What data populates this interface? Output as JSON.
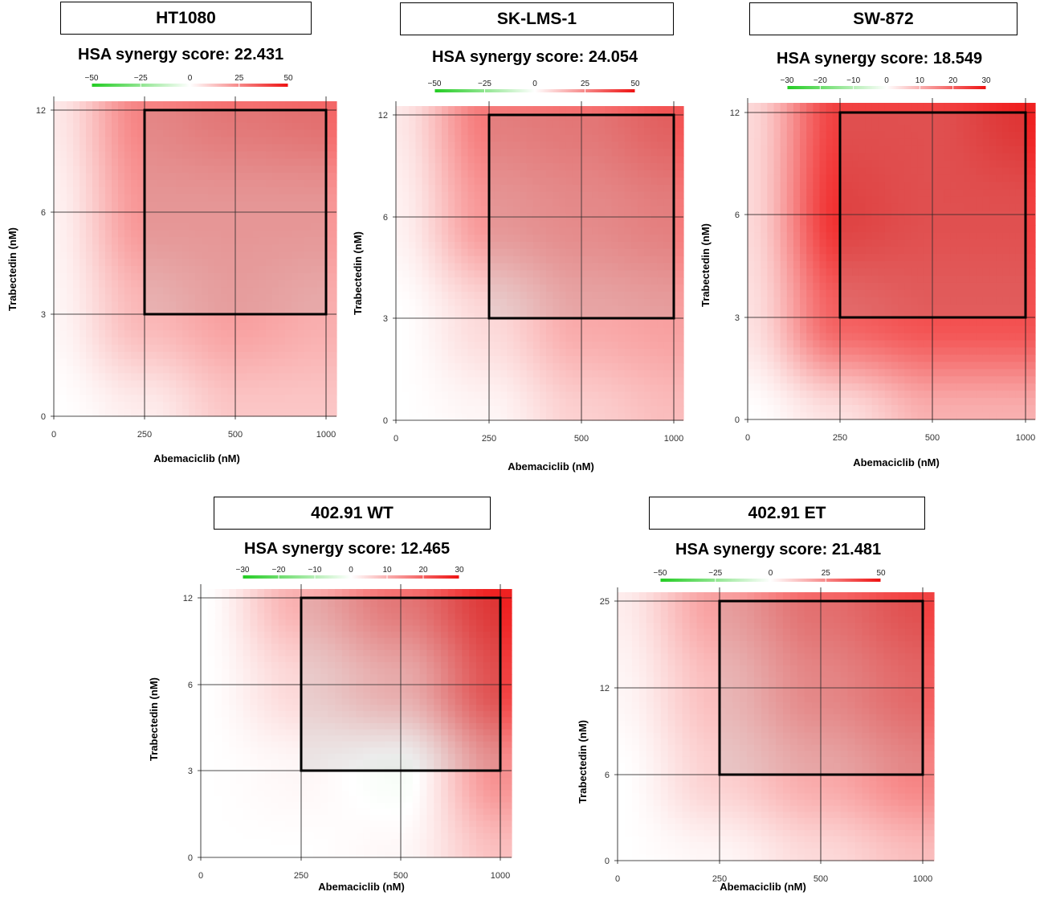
{
  "colors": {
    "negative": "#22cc22",
    "neutral": "#ffffff",
    "positive": "#ee1111",
    "box": "#000000"
  },
  "chart_data": [
    {
      "type": "heatmap",
      "title": "HT1080",
      "subtitle": "HSA synergy score: 22.431",
      "xlabel": "Abemaciclib (nM)",
      "ylabel": "Trabectedin (nM)",
      "x_ticks": [
        "0",
        "250",
        "500",
        "1000"
      ],
      "y_ticks": [
        "0",
        "3",
        "6",
        "12"
      ],
      "colorbar_ticks": [
        "−50",
        "−25",
        "0",
        "25",
        "50"
      ],
      "colorbar_range": [
        -50,
        50
      ],
      "highlight_region": {
        "x": [
          "250",
          "1000"
        ],
        "y": [
          "3",
          "12"
        ]
      },
      "grid": [
        [
          0,
          4,
          12,
          12
        ],
        [
          2,
          15,
          20,
          17
        ],
        [
          3,
          22,
          22,
          22
        ],
        [
          5,
          26,
          30,
          32
        ]
      ]
    },
    {
      "type": "heatmap",
      "title": "SK-LMS-1",
      "subtitle": "HSA synergy score: 24.054",
      "xlabel": "Abemaciclib (nM)",
      "ylabel": "Trabectedin (nM)",
      "x_ticks": [
        "0",
        "250",
        "500",
        "1000"
      ],
      "y_ticks": [
        "0",
        "3",
        "6",
        "12"
      ],
      "colorbar_ticks": [
        "−50",
        "−25",
        "0",
        "25",
        "50"
      ],
      "colorbar_range": [
        -50,
        50
      ],
      "highlight_region": {
        "x": [
          "250",
          "1000"
        ],
        "y": [
          "3",
          "12"
        ]
      },
      "grid": [
        [
          0,
          2,
          10,
          14
        ],
        [
          0,
          8,
          18,
          20
        ],
        [
          3,
          22,
          25,
          28
        ],
        [
          5,
          28,
          30,
          36
        ]
      ]
    },
    {
      "type": "heatmap",
      "title": "SW-872",
      "subtitle": "HSA synergy score: 18.549",
      "xlabel": "Abemaciclib (nM)",
      "ylabel": "Trabectedin (nM)",
      "x_ticks": [
        "0",
        "250",
        "500",
        "1000"
      ],
      "y_ticks": [
        "0",
        "3",
        "6",
        "12"
      ],
      "colorbar_ticks": [
        "−30",
        "−20",
        "−10",
        "0",
        "10",
        "20",
        "30"
      ],
      "colorbar_range": [
        -30,
        30
      ],
      "highlight_region": {
        "x": [
          "250",
          "1000"
        ],
        "y": [
          "3",
          "12"
        ]
      },
      "grid": [
        [
          0,
          4,
          10,
          10
        ],
        [
          4,
          20,
          22,
          22
        ],
        [
          5,
          26,
          24,
          24
        ],
        [
          5,
          24,
          24,
          28
        ]
      ]
    },
    {
      "type": "heatmap",
      "title": "402.91 WT",
      "subtitle": "HSA synergy score: 12.465",
      "xlabel": "Abemaciclib (nM)",
      "ylabel": "Trabectedin (nM)",
      "x_ticks": [
        "0",
        "250",
        "500",
        "1000"
      ],
      "y_ticks": [
        "0",
        "3",
        "6",
        "12"
      ],
      "colorbar_ticks": [
        "−30",
        "−20",
        "−10",
        "0",
        "10",
        "20",
        "30"
      ],
      "colorbar_range": [
        -30,
        30
      ],
      "highlight_region": {
        "x": [
          "250",
          "1000"
        ],
        "y": [
          "3",
          "12"
        ]
      },
      "grid": [
        [
          0,
          0,
          1,
          8
        ],
        [
          0,
          1,
          -1,
          14
        ],
        [
          0,
          5,
          10,
          24
        ],
        [
          0,
          10,
          18,
          28
        ]
      ]
    },
    {
      "type": "heatmap",
      "title": "402.91 ET",
      "subtitle": "HSA synergy score: 21.481",
      "xlabel": "Abemaciclib (nM)",
      "ylabel": "Trabectedin (nM)",
      "x_ticks": [
        "0",
        "250",
        "500",
        "1000"
      ],
      "y_ticks": [
        "0",
        "6",
        "12",
        "25"
      ],
      "colorbar_ticks": [
        "−50",
        "−25",
        "0",
        "25",
        "50"
      ],
      "colorbar_range": [
        -50,
        50
      ],
      "highlight_region": {
        "x": [
          "250",
          "1000"
        ],
        "y": [
          "6",
          "25"
        ]
      },
      "grid": [
        [
          0,
          2,
          8,
          14
        ],
        [
          0,
          10,
          18,
          26
        ],
        [
          2,
          14,
          26,
          34
        ],
        [
          4,
          20,
          32,
          40
        ]
      ]
    }
  ]
}
